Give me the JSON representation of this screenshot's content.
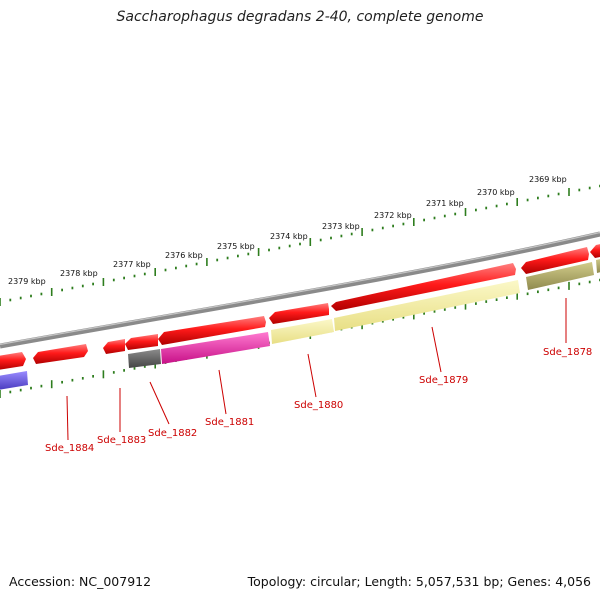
{
  "title": "Saccharophagus degradans 2-40, complete genome",
  "footer": {
    "accession_label": "Accession: NC_007912",
    "stats_label": "Topology: circular; Length: 5,057,531 bp; Genes: 4,056"
  },
  "colors": {
    "forward_gene": "#ee1111",
    "backbone": "#8a8a8a",
    "ticks": "#2e7d1e",
    "gene_label": "#cc0000",
    "yellow_gene": "#f2ec9a",
    "olive_gene": "#b3ad6a",
    "magenta_gene": "#ec2aa8",
    "gray_gene": "#666666",
    "blue_gene": "#6a5ad8"
  },
  "kbp_labels": [
    "2369 kbp",
    "2370 kbp",
    "2371 kbp",
    "2372 kbp",
    "2373 kbp",
    "2374 kbp",
    "2375 kbp",
    "2376 kbp",
    "2377 kbp",
    "2378 kbp",
    "2379 kbp"
  ],
  "gene_labels": [
    "Sde_1878",
    "Sde_1879",
    "Sde_1880",
    "Sde_1881",
    "Sde_1882",
    "Sde_1883",
    "Sde_1884"
  ]
}
